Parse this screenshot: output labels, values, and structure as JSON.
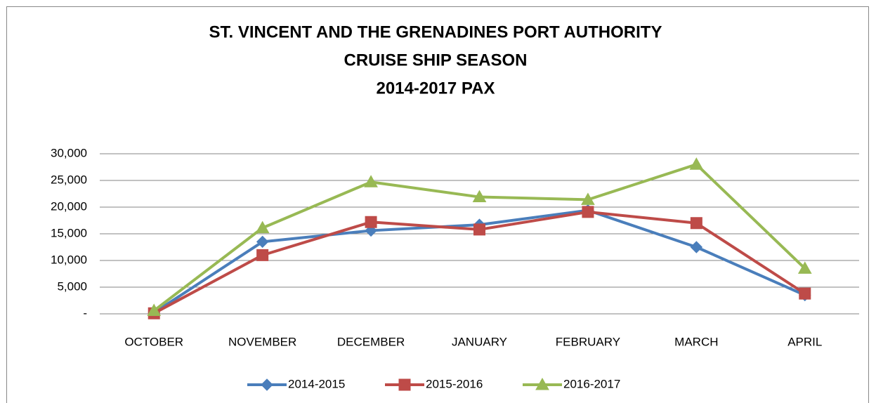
{
  "chart_data": {
    "type": "line",
    "title": [
      "ST. VINCENT AND THE GRENADINES PORT AUTHORITY",
      "CRUISE SHIP SEASON",
      "2014-2017 PAX"
    ],
    "categories": [
      "OCTOBER",
      "NOVEMBER",
      "DECEMBER",
      "JANUARY",
      "FEBRUARY",
      "MARCH",
      "APRIL"
    ],
    "series": [
      {
        "name": "2014-2015",
        "color": "#4a7ebb",
        "marker": "diamond",
        "values": [
          200,
          13500,
          15600,
          16700,
          19400,
          12500,
          3500
        ]
      },
      {
        "name": "2015-2016",
        "color": "#be4b48",
        "marker": "square",
        "values": [
          100,
          11000,
          17200,
          15800,
          19100,
          17000,
          3800
        ]
      },
      {
        "name": "2016-2017",
        "color": "#98b954",
        "marker": "triangle",
        "values": [
          600,
          16100,
          24700,
          21900,
          21400,
          28000,
          8500
        ]
      }
    ],
    "ylim": [
      0,
      30000
    ],
    "yticks": [
      {
        "value": 0,
        "label": "-"
      },
      {
        "value": 5000,
        "label": "5,000"
      },
      {
        "value": 10000,
        "label": "10,000"
      },
      {
        "value": 15000,
        "label": "15,000"
      },
      {
        "value": 20000,
        "label": "20,000"
      },
      {
        "value": 25000,
        "label": "25,000"
      },
      {
        "value": 30000,
        "label": "30,000"
      }
    ],
    "grid": true,
    "legend": "bottom"
  }
}
